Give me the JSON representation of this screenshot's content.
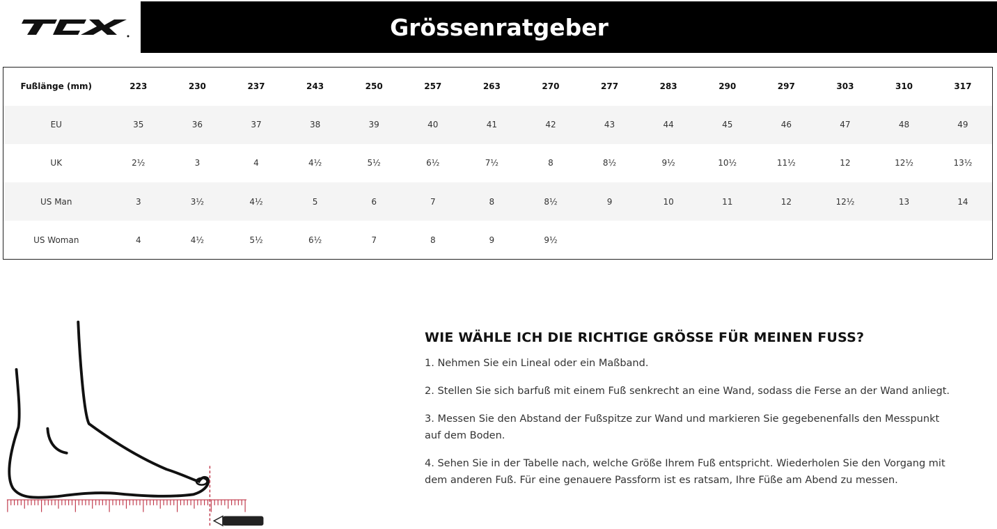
{
  "header": {
    "logo_text": "TCX",
    "title": "Grössenratgeber"
  },
  "table": {
    "header_label": "Fußlänge (mm)",
    "lengths": [
      "223",
      "230",
      "237",
      "243",
      "250",
      "257",
      "263",
      "270",
      "277",
      "283",
      "290",
      "297",
      "303",
      "310",
      "317"
    ],
    "rows": [
      {
        "label": "EU",
        "values": [
          "35",
          "36",
          "37",
          "38",
          "39",
          "40",
          "41",
          "42",
          "43",
          "44",
          "45",
          "46",
          "47",
          "48",
          "49"
        ]
      },
      {
        "label": "UK",
        "values": [
          "2½",
          "3",
          "4",
          "4½",
          "5½",
          "6½",
          "7½",
          "8",
          "8½",
          "9½",
          "10½",
          "11½",
          "12",
          "12½",
          "13½"
        ]
      },
      {
        "label": "US Man",
        "values": [
          "3",
          "3½",
          "4½",
          "5",
          "6",
          "7",
          "8",
          "8½",
          "9",
          "10",
          "11",
          "12",
          "12½",
          "13",
          "14"
        ]
      },
      {
        "label": "US Woman",
        "values": [
          "4",
          "4½",
          "5½",
          "6½",
          "7",
          "8",
          "9",
          "9½",
          "",
          "",
          "",
          "",
          "",
          "",
          ""
        ]
      }
    ]
  },
  "guide": {
    "heading": "WIE WÄHLE ICH DIE RICHTIGE GRÖSSE FÜR MEINEN FUSS?",
    "steps": [
      "1. Nehmen Sie ein Lineal oder ein Maßband.",
      "2. Stellen Sie sich barfuß mit einem Fuß senkrecht an eine Wand, sodass die Ferse an der Wand anliegt.",
      "3. Messen Sie den Abstand der Fußspitze zur Wand und markieren Sie gegebenenfalls den Messpunkt auf dem Boden.",
      "4. Sehen Sie in der Tabelle nach, welche Größe Ihrem Fuß entspricht. Wiederholen Sie den Vorgang mit dem anderen Fuß. Für eine genauere Passform ist es ratsam, Ihre Füße am Abend zu messen."
    ]
  }
}
